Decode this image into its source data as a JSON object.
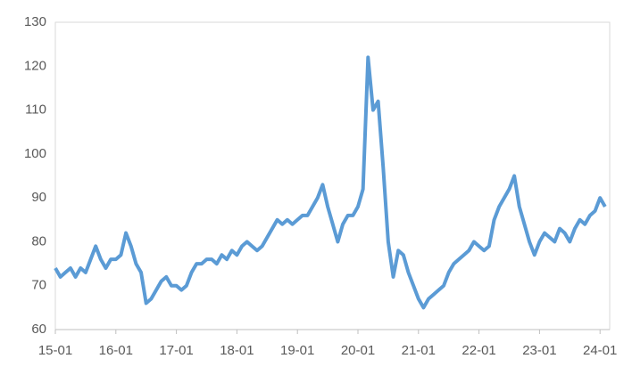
{
  "chart_data": {
    "type": "line",
    "x": [
      "15-01",
      null,
      null,
      null,
      null,
      null,
      null,
      null,
      null,
      null,
      null,
      null,
      "16-01",
      null,
      null,
      null,
      null,
      null,
      null,
      null,
      null,
      null,
      null,
      null,
      "17-01",
      null,
      null,
      null,
      null,
      null,
      null,
      null,
      null,
      null,
      null,
      null,
      "18-01",
      null,
      null,
      null,
      null,
      null,
      null,
      null,
      null,
      null,
      null,
      null,
      "19-01",
      null,
      null,
      null,
      null,
      null,
      null,
      null,
      null,
      null,
      null,
      null,
      "20-01",
      null,
      null,
      null,
      null,
      null,
      null,
      null,
      null,
      null,
      null,
      null,
      "21-01",
      null,
      null,
      null,
      null,
      null,
      null,
      null,
      null,
      null,
      null,
      null,
      "22-01",
      null,
      null,
      null,
      null,
      null,
      null,
      null,
      null,
      null,
      null,
      null,
      "23-01",
      null,
      null,
      null,
      null,
      null,
      null,
      null,
      null,
      null,
      null,
      null,
      "24-01",
      null
    ],
    "series": [
      {
        "color": "#5b9bd5",
        "values": [
          74,
          72,
          73,
          74,
          72,
          74,
          73,
          76,
          79,
          76,
          74,
          76,
          76,
          77,
          82,
          79,
          75,
          73,
          66,
          67,
          69,
          71,
          72,
          70,
          70,
          69,
          70,
          73,
          75,
          75,
          76,
          76,
          75,
          77,
          76,
          78,
          77,
          79,
          80,
          79,
          78,
          79,
          81,
          83,
          85,
          84,
          85,
          84,
          85,
          86,
          86,
          88,
          90,
          93,
          88,
          84,
          80,
          84,
          86,
          86,
          88,
          92,
          122,
          110,
          112,
          97,
          80,
          72,
          78,
          77,
          73,
          70,
          67,
          65,
          67,
          68,
          69,
          70,
          73,
          75,
          76,
          77,
          78,
          80,
          79,
          78,
          79,
          85,
          88,
          90,
          92,
          95,
          88,
          84,
          80,
          77,
          80,
          82,
          81,
          80,
          83,
          82,
          80,
          83,
          85,
          84,
          86,
          87,
          90,
          88
        ]
      }
    ],
    "ylim": [
      60,
      130
    ],
    "yticks": [
      60,
      70,
      80,
      90,
      100,
      110,
      120,
      130
    ]
  }
}
